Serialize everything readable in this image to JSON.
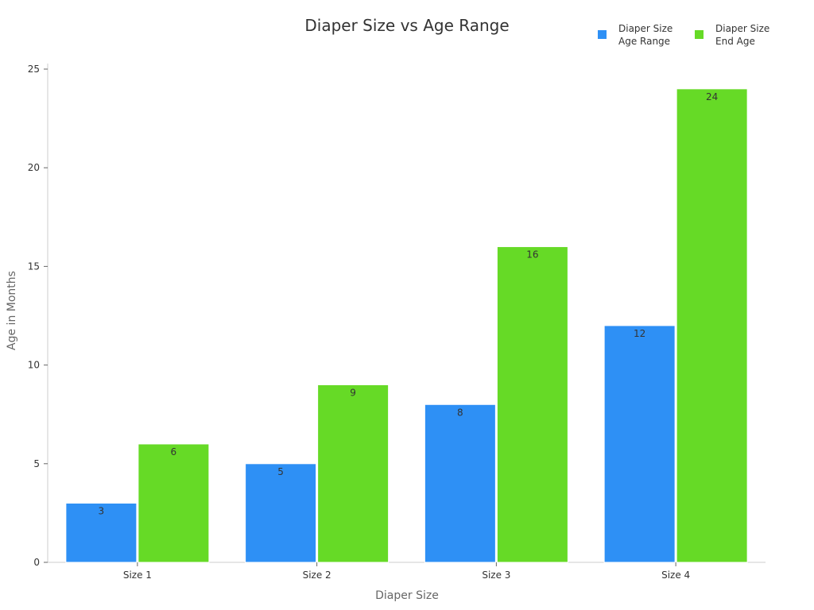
{
  "chart_data": {
    "type": "bar",
    "title": "Diaper Size vs Age Range",
    "xlabel": "Diaper Size",
    "ylabel": "Age in Months",
    "categories": [
      "Size 1",
      "Size 2",
      "Size 3",
      "Size 4"
    ],
    "series": [
      {
        "name": "Diaper Size\nAge Range",
        "color": "#2E90F5",
        "values": [
          3,
          5,
          8,
          12
        ]
      },
      {
        "name": "Diaper Size\nEnd Age",
        "color": "#66DA26",
        "values": [
          6,
          9,
          16,
          24
        ]
      }
    ],
    "ylim": [
      0,
      25
    ],
    "yticks": [
      0,
      5,
      10,
      15,
      20,
      25
    ],
    "grid": false,
    "legend": "top-right",
    "data_labels": true
  }
}
